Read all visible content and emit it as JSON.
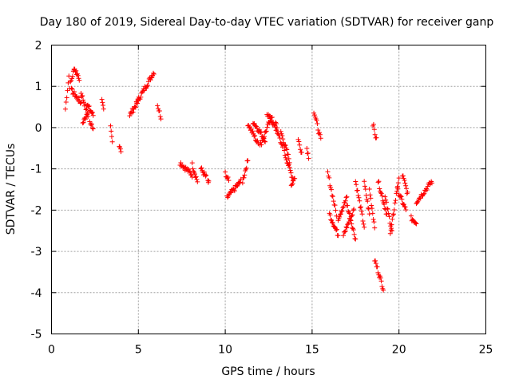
{
  "chart_data": {
    "type": "scatter",
    "title": "Day 180 of 2019, Sidereal Day-to-day VTEC variation (SDTVAR) for receiver ganp",
    "xlabel": "GPS time / hours",
    "ylabel": "SDTVAR / TECUs",
    "xlim": [
      0,
      25
    ],
    "ylim": [
      -5,
      2
    ],
    "xticks": [
      0,
      5,
      10,
      15,
      20,
      25
    ],
    "yticks": [
      2,
      1,
      0,
      -1,
      -2,
      -3,
      -4,
      -5
    ],
    "grid": true,
    "marker": "+",
    "color": "#ff0000",
    "segments": [
      {
        "start": 0.8,
        "end": 1.0,
        "y0": 0.45,
        "y1": 1.25
      },
      {
        "start": 1.05,
        "end": 1.3,
        "y0": 1.0,
        "y1": 1.4
      },
      {
        "start": 1.3,
        "end": 1.6,
        "y0": 1.45,
        "y1": 1.2
      },
      {
        "start": 1.15,
        "end": 1.7,
        "y0": 0.9,
        "y1": 0.6
      },
      {
        "start": 1.7,
        "end": 2.1,
        "y0": 0.85,
        "y1": 0.3
      },
      {
        "start": 1.8,
        "end": 2.1,
        "y0": 0.1,
        "y1": 0.4
      },
      {
        "start": 2.05,
        "end": 2.4,
        "y0": 0.55,
        "y1": 0.3
      },
      {
        "start": 2.2,
        "end": 2.4,
        "y0": 0.15,
        "y1": 0.0
      },
      {
        "start": 2.9,
        "end": 3.0,
        "y0": 0.65,
        "y1": 0.4
      },
      {
        "start": 3.4,
        "end": 3.5,
        "y0": 0.0,
        "y1": -0.35
      },
      {
        "start": 3.9,
        "end": 4.0,
        "y0": -0.4,
        "y1": -0.55
      },
      {
        "start": 4.5,
        "end": 5.0,
        "y0": 0.3,
        "y1": 0.65
      },
      {
        "start": 4.9,
        "end": 5.9,
        "y0": 0.6,
        "y1": 1.35
      },
      {
        "start": 6.1,
        "end": 6.3,
        "y0": 0.55,
        "y1": 0.25
      },
      {
        "start": 7.4,
        "end": 8.1,
        "y0": -0.85,
        "y1": -1.15
      },
      {
        "start": 8.1,
        "end": 8.4,
        "y0": -0.9,
        "y1": -1.3
      },
      {
        "start": 8.6,
        "end": 8.9,
        "y0": -1.0,
        "y1": -1.2
      },
      {
        "start": 9.0,
        "end": 9.05,
        "y0": -1.3,
        "y1": -1.35
      },
      {
        "start": 10.1,
        "end": 10.9,
        "y0": -1.7,
        "y1": -1.3
      },
      {
        "start": 10.0,
        "end": 10.2,
        "y0": -1.1,
        "y1": -1.3
      },
      {
        "start": 11.0,
        "end": 11.3,
        "y0": -1.3,
        "y1": -0.8
      },
      {
        "start": 11.3,
        "end": 11.9,
        "y0": 0.1,
        "y1": -0.4
      },
      {
        "start": 11.6,
        "end": 12.3,
        "y0": 0.15,
        "y1": -0.3
      },
      {
        "start": 12.0,
        "end": 12.7,
        "y0": -0.45,
        "y1": 0.3
      },
      {
        "start": 12.4,
        "end": 13.0,
        "y0": 0.35,
        "y1": -0.1
      },
      {
        "start": 12.9,
        "end": 13.3,
        "y0": 0.1,
        "y1": -0.5
      },
      {
        "start": 13.2,
        "end": 13.7,
        "y0": -0.1,
        "y1": -0.8
      },
      {
        "start": 13.4,
        "end": 13.9,
        "y0": -0.6,
        "y1": -1.25
      },
      {
        "start": 13.8,
        "end": 14.0,
        "y0": -1.4,
        "y1": -1.2
      },
      {
        "start": 14.2,
        "end": 14.4,
        "y0": -0.3,
        "y1": -0.6
      },
      {
        "start": 14.7,
        "end": 14.8,
        "y0": -0.5,
        "y1": -0.7
      },
      {
        "start": 15.1,
        "end": 15.5,
        "y0": 0.4,
        "y1": -0.3
      },
      {
        "start": 15.9,
        "end": 16.4,
        "y0": -1.1,
        "y1": -2.1
      },
      {
        "start": 16.0,
        "end": 16.5,
        "y0": -2.1,
        "y1": -2.6
      },
      {
        "start": 16.5,
        "end": 17.0,
        "y0": -2.2,
        "y1": -1.7
      },
      {
        "start": 16.8,
        "end": 17.4,
        "y0": -2.6,
        "y1": -2.0
      },
      {
        "start": 17.0,
        "end": 17.5,
        "y0": -1.85,
        "y1": -2.7
      },
      {
        "start": 17.5,
        "end": 18.0,
        "y0": -1.3,
        "y1": -2.4
      },
      {
        "start": 18.0,
        "end": 18.3,
        "y0": -1.35,
        "y1": -2.1
      },
      {
        "start": 18.3,
        "end": 18.6,
        "y0": -1.5,
        "y1": -2.4
      },
      {
        "start": 18.5,
        "end": 18.7,
        "y0": 0.1,
        "y1": -0.3
      },
      {
        "start": 18.6,
        "end": 19.1,
        "y0": -3.2,
        "y1": -3.9
      },
      {
        "start": 18.8,
        "end": 19.3,
        "y0": -1.3,
        "y1": -2.1
      },
      {
        "start": 19.2,
        "end": 19.6,
        "y0": -1.7,
        "y1": -2.5
      },
      {
        "start": 19.5,
        "end": 20.0,
        "y0": -2.6,
        "y1": -1.2
      },
      {
        "start": 19.9,
        "end": 20.4,
        "y0": -1.5,
        "y1": -2.0
      },
      {
        "start": 20.2,
        "end": 20.5,
        "y0": -1.15,
        "y1": -1.6
      },
      {
        "start": 20.7,
        "end": 21.0,
        "y0": -2.2,
        "y1": -2.3
      },
      {
        "start": 21.0,
        "end": 21.9,
        "y0": -1.8,
        "y1": -1.3
      }
    ]
  }
}
